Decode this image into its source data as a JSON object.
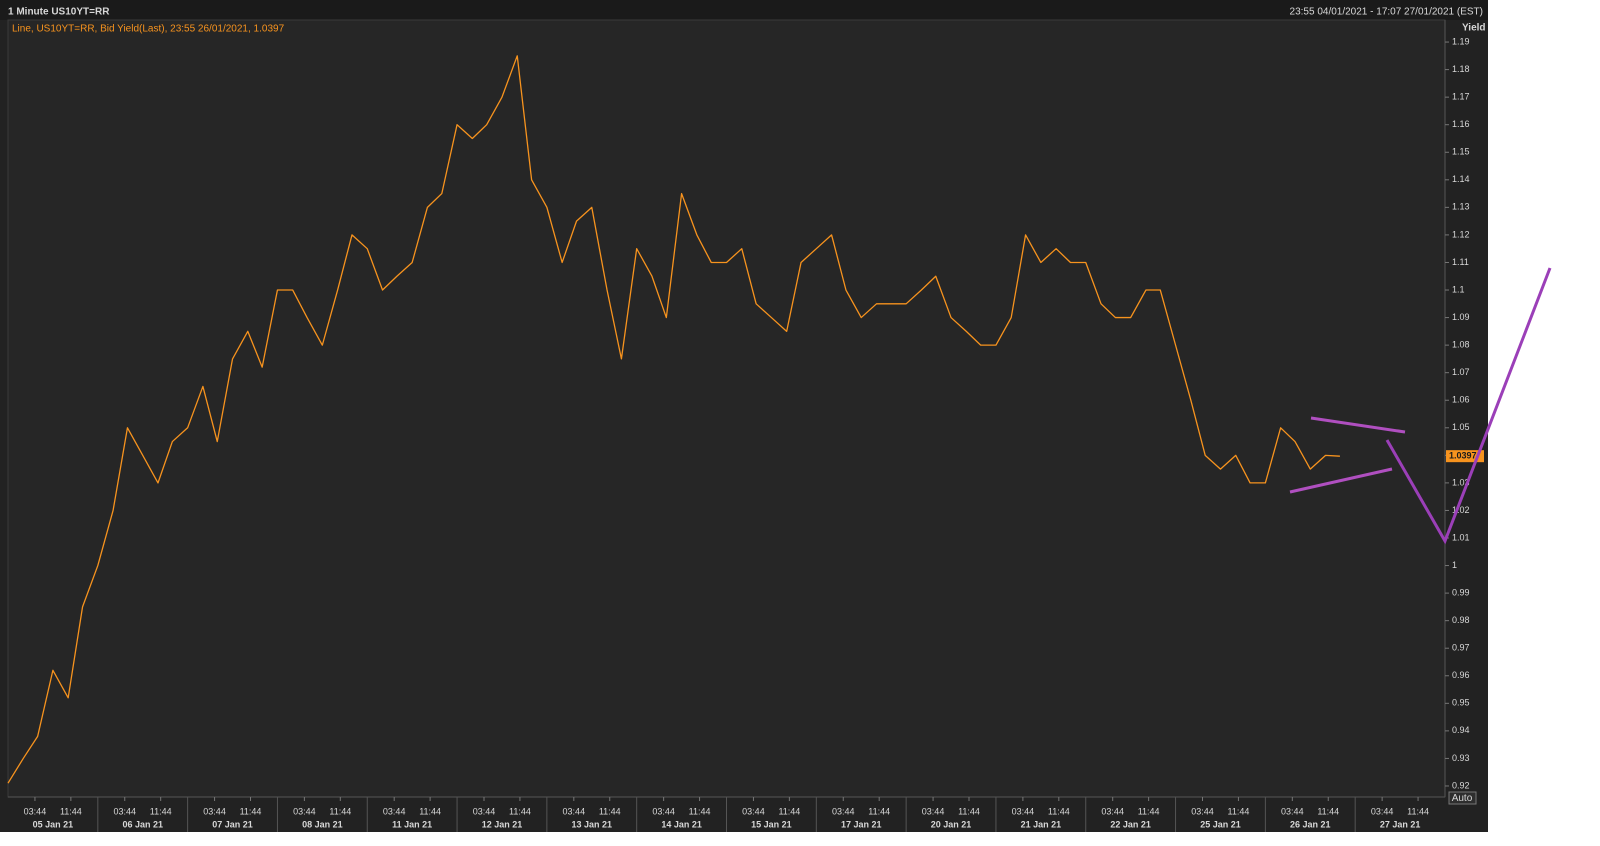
{
  "chart_data": {
    "type": "line",
    "title": "1 Minute US10YT=RR",
    "time_range": "23:55 04/01/2021 - 17:07 27/01/2021 (EST)",
    "subtitle": "Line, US10YT=RR, Bid Yield(Last), 23:55 26/01/2021, 1.0397",
    "y_label": "Yield",
    "auto_button": "Auto",
    "days": [
      {
        "date": "05 Jan 21",
        "times": [
          "03:44",
          "11:44"
        ]
      },
      {
        "date": "06 Jan 21",
        "times": [
          "03:44",
          "11:44"
        ]
      },
      {
        "date": "07 Jan 21",
        "times": [
          "03:44",
          "11:44"
        ]
      },
      {
        "date": "08 Jan 21",
        "times": [
          "03:44",
          "11:44"
        ]
      },
      {
        "date": "11 Jan 21",
        "times": [
          "03:44",
          "11:44"
        ]
      },
      {
        "date": "12 Jan 21",
        "times": [
          "03:44",
          "11:44"
        ]
      },
      {
        "date": "13 Jan 21",
        "times": [
          "03:44",
          "11:44"
        ]
      },
      {
        "date": "14 Jan 21",
        "times": [
          "03:44",
          "11:44"
        ]
      },
      {
        "date": "15 Jan 21",
        "times": [
          "03:44",
          "11:44"
        ]
      },
      {
        "date": "17 Jan 21",
        "times": [
          "03:44",
          "11:44"
        ]
      },
      {
        "date": "20 Jan 21",
        "times": [
          "03:44",
          "11:44"
        ]
      },
      {
        "date": "21 Jan 21",
        "times": [
          "03:44",
          "11:44"
        ]
      },
      {
        "date": "22 Jan 21",
        "times": [
          "03:44",
          "11:44"
        ]
      },
      {
        "date": "25 Jan 21",
        "times": [
          "03:44",
          "11:44"
        ]
      },
      {
        "date": "26 Jan 21",
        "times": [
          "03:44",
          "11:44"
        ]
      },
      {
        "date": "27 Jan 21",
        "times": [
          "03:44",
          "11:44"
        ]
      }
    ],
    "x": [
      0,
      0.17,
      0.33,
      0.5,
      0.67,
      0.83,
      1,
      1.17,
      1.33,
      1.5,
      1.67,
      1.83,
      2,
      2.17,
      2.33,
      2.5,
      2.67,
      2.83,
      3,
      3.17,
      3.33,
      3.5,
      3.67,
      3.83,
      4,
      4.17,
      4.33,
      4.5,
      4.67,
      4.83,
      5,
      5.17,
      5.33,
      5.5,
      5.67,
      5.83,
      6,
      6.17,
      6.33,
      6.5,
      6.67,
      6.83,
      7,
      7.17,
      7.33,
      7.5,
      7.67,
      7.83,
      8,
      8.17,
      8.33,
      8.5,
      8.67,
      8.83,
      9,
      9.17,
      9.33,
      9.5,
      9.67,
      9.83,
      10,
      10.17,
      10.33,
      10.5,
      10.67,
      10.83,
      11,
      11.17,
      11.33,
      11.5,
      11.67,
      11.83,
      12,
      12.17,
      12.33,
      12.5,
      12.67,
      12.83,
      13,
      13.17,
      13.33,
      13.5,
      13.67,
      13.83,
      14,
      14.17,
      14.33,
      14.5,
      14.67,
      14.83
    ],
    "series": [
      {
        "color": "#f7931e",
        "values": [
          0.921,
          0.93,
          0.938,
          0.962,
          0.952,
          0.985,
          1.0,
          1.02,
          1.05,
          1.04,
          1.03,
          1.045,
          1.05,
          1.065,
          1.045,
          1.075,
          1.085,
          1.072,
          1.1,
          1.1,
          1.09,
          1.08,
          1.1,
          1.12,
          1.115,
          1.1,
          1.105,
          1.11,
          1.13,
          1.135,
          1.16,
          1.155,
          1.16,
          1.17,
          1.185,
          1.14,
          1.13,
          1.11,
          1.125,
          1.13,
          1.1,
          1.075,
          1.115,
          1.105,
          1.09,
          1.135,
          1.12,
          1.11,
          1.11,
          1.115,
          1.095,
          1.09,
          1.085,
          1.11,
          1.115,
          1.12,
          1.1,
          1.09,
          1.095,
          1.095,
          1.095,
          1.1,
          1.105,
          1.09,
          1.085,
          1.08,
          1.08,
          1.09,
          1.12,
          1.11,
          1.115,
          1.11,
          1.11,
          1.095,
          1.09,
          1.09,
          1.1,
          1.1,
          1.08,
          1.06,
          1.04,
          1.035,
          1.04,
          1.03,
          1.03,
          1.05,
          1.045,
          1.035,
          1.04,
          1.0397
        ]
      }
    ],
    "xlim": [
      0,
      16
    ],
    "ylim": [
      0.916,
      1.198
    ],
    "yticks": [
      0.92,
      0.93,
      0.94,
      0.95,
      0.96,
      0.97,
      0.98,
      0.99,
      1,
      1.01,
      1.02,
      1.03,
      1.04,
      1.05,
      1.06,
      1.07,
      1.08,
      1.09,
      1.1,
      1.11,
      1.12,
      1.13,
      1.14,
      1.15,
      1.16,
      1.17,
      1.18,
      1.19
    ]
  }
}
